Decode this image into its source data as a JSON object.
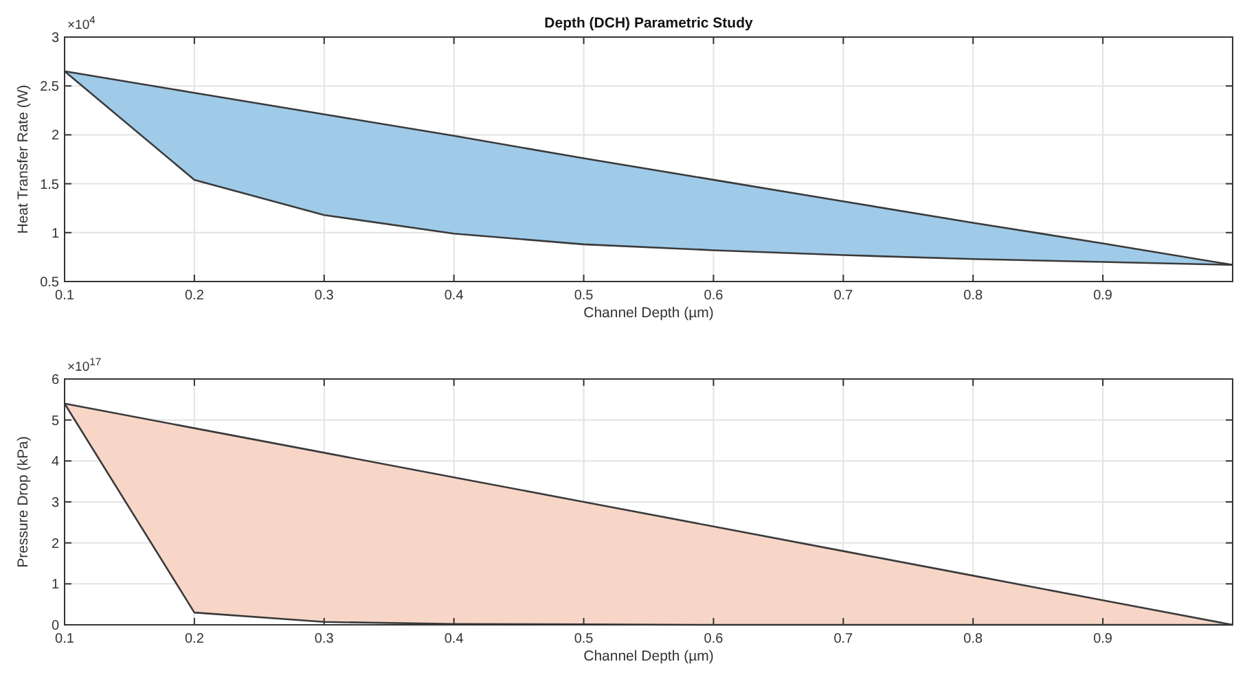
{
  "chart_data": [
    {
      "type": "line",
      "title": "Depth (DCH) Parametric Study",
      "xlabel": "Channel Depth (µm)",
      "ylabel": "Heat Transfer Rate (W)",
      "annotations": [
        "×10$^{4}$"
      ],
      "x": [
        0.1,
        0.2,
        0.3,
        0.4,
        0.5,
        0.6,
        0.7,
        0.8,
        0.9,
        1.0
      ],
      "series": [
        {
          "color": "#3a3a3a",
          "colors": [
            "#9fcbe8",
            "#9fcbe8",
            "#9fcbe8",
            "#9fcbe8",
            "#9fcbe8",
            "#9fcbe8",
            "#9fcbe8",
            "#9fcbe8",
            "#9fcbe8",
            "#9fcbe8"
          ],
          "values": [
            2.65,
            2.43,
            2.21,
            1.99,
            1.76,
            1.54,
            1.32,
            1.1,
            0.89,
            0.67
          ],
          "lower": [
            2.65,
            1.54,
            1.18,
            0.99,
            0.88,
            0.82,
            0.77,
            0.73,
            0.7,
            0.67
          ],
          "upper": [
            2.65,
            2.43,
            2.21,
            1.99,
            1.76,
            1.54,
            1.32,
            1.1,
            0.89,
            0.67
          ]
        }
      ],
      "xlim": [
        0.1,
        1.0
      ],
      "xticks": [
        0.1,
        0.2,
        0.3,
        0.4,
        0.5,
        0.6,
        0.7,
        0.8,
        0.9
      ],
      "ylim": [
        0.5,
        3
      ],
      "yticks": [
        0.5,
        1,
        1.5,
        2,
        2.5,
        3
      ],
      "grid": true
    },
    {
      "type": "line",
      "xlabel": "Channel Depth (µm)",
      "ylabel": "Pressure Drop (kPa)",
      "annotations": [
        "×10$^{17}$"
      ],
      "x": [
        0.1,
        0.2,
        0.3,
        0.4,
        0.5,
        0.6,
        0.7,
        0.8,
        0.9,
        1.0
      ],
      "series": [
        {
          "color": "#3a3a3a",
          "colors": [
            "#f7d6c8",
            "#f7d6c8",
            "#f7d6c8",
            "#f7d6c8",
            "#f7d6c8",
            "#f7d6c8",
            "#f7d6c8",
            "#f7d6c8",
            "#f7d6c8",
            "#f7d6c8"
          ],
          "values": [
            5.4,
            4.8,
            4.2,
            3.6,
            3.0,
            2.4,
            1.8,
            1.2,
            0.6,
            0
          ],
          "lower": [
            5.4,
            0.3,
            0.07,
            0.02,
            0.01,
            0,
            0,
            0,
            0,
            0
          ],
          "upper": [
            5.4,
            4.8,
            4.2,
            3.6,
            3.0,
            2.4,
            1.8,
            1.2,
            0.6,
            0
          ]
        }
      ],
      "xlim": [
        0.1,
        1.0
      ],
      "xticks": [
        0.1,
        0.2,
        0.3,
        0.4,
        0.5,
        0.6,
        0.7,
        0.8,
        0.9
      ],
      "ylim": [
        0,
        6
      ],
      "yticks": [
        0,
        1,
        2,
        3,
        4,
        5,
        6
      ],
      "grid": true
    }
  ]
}
